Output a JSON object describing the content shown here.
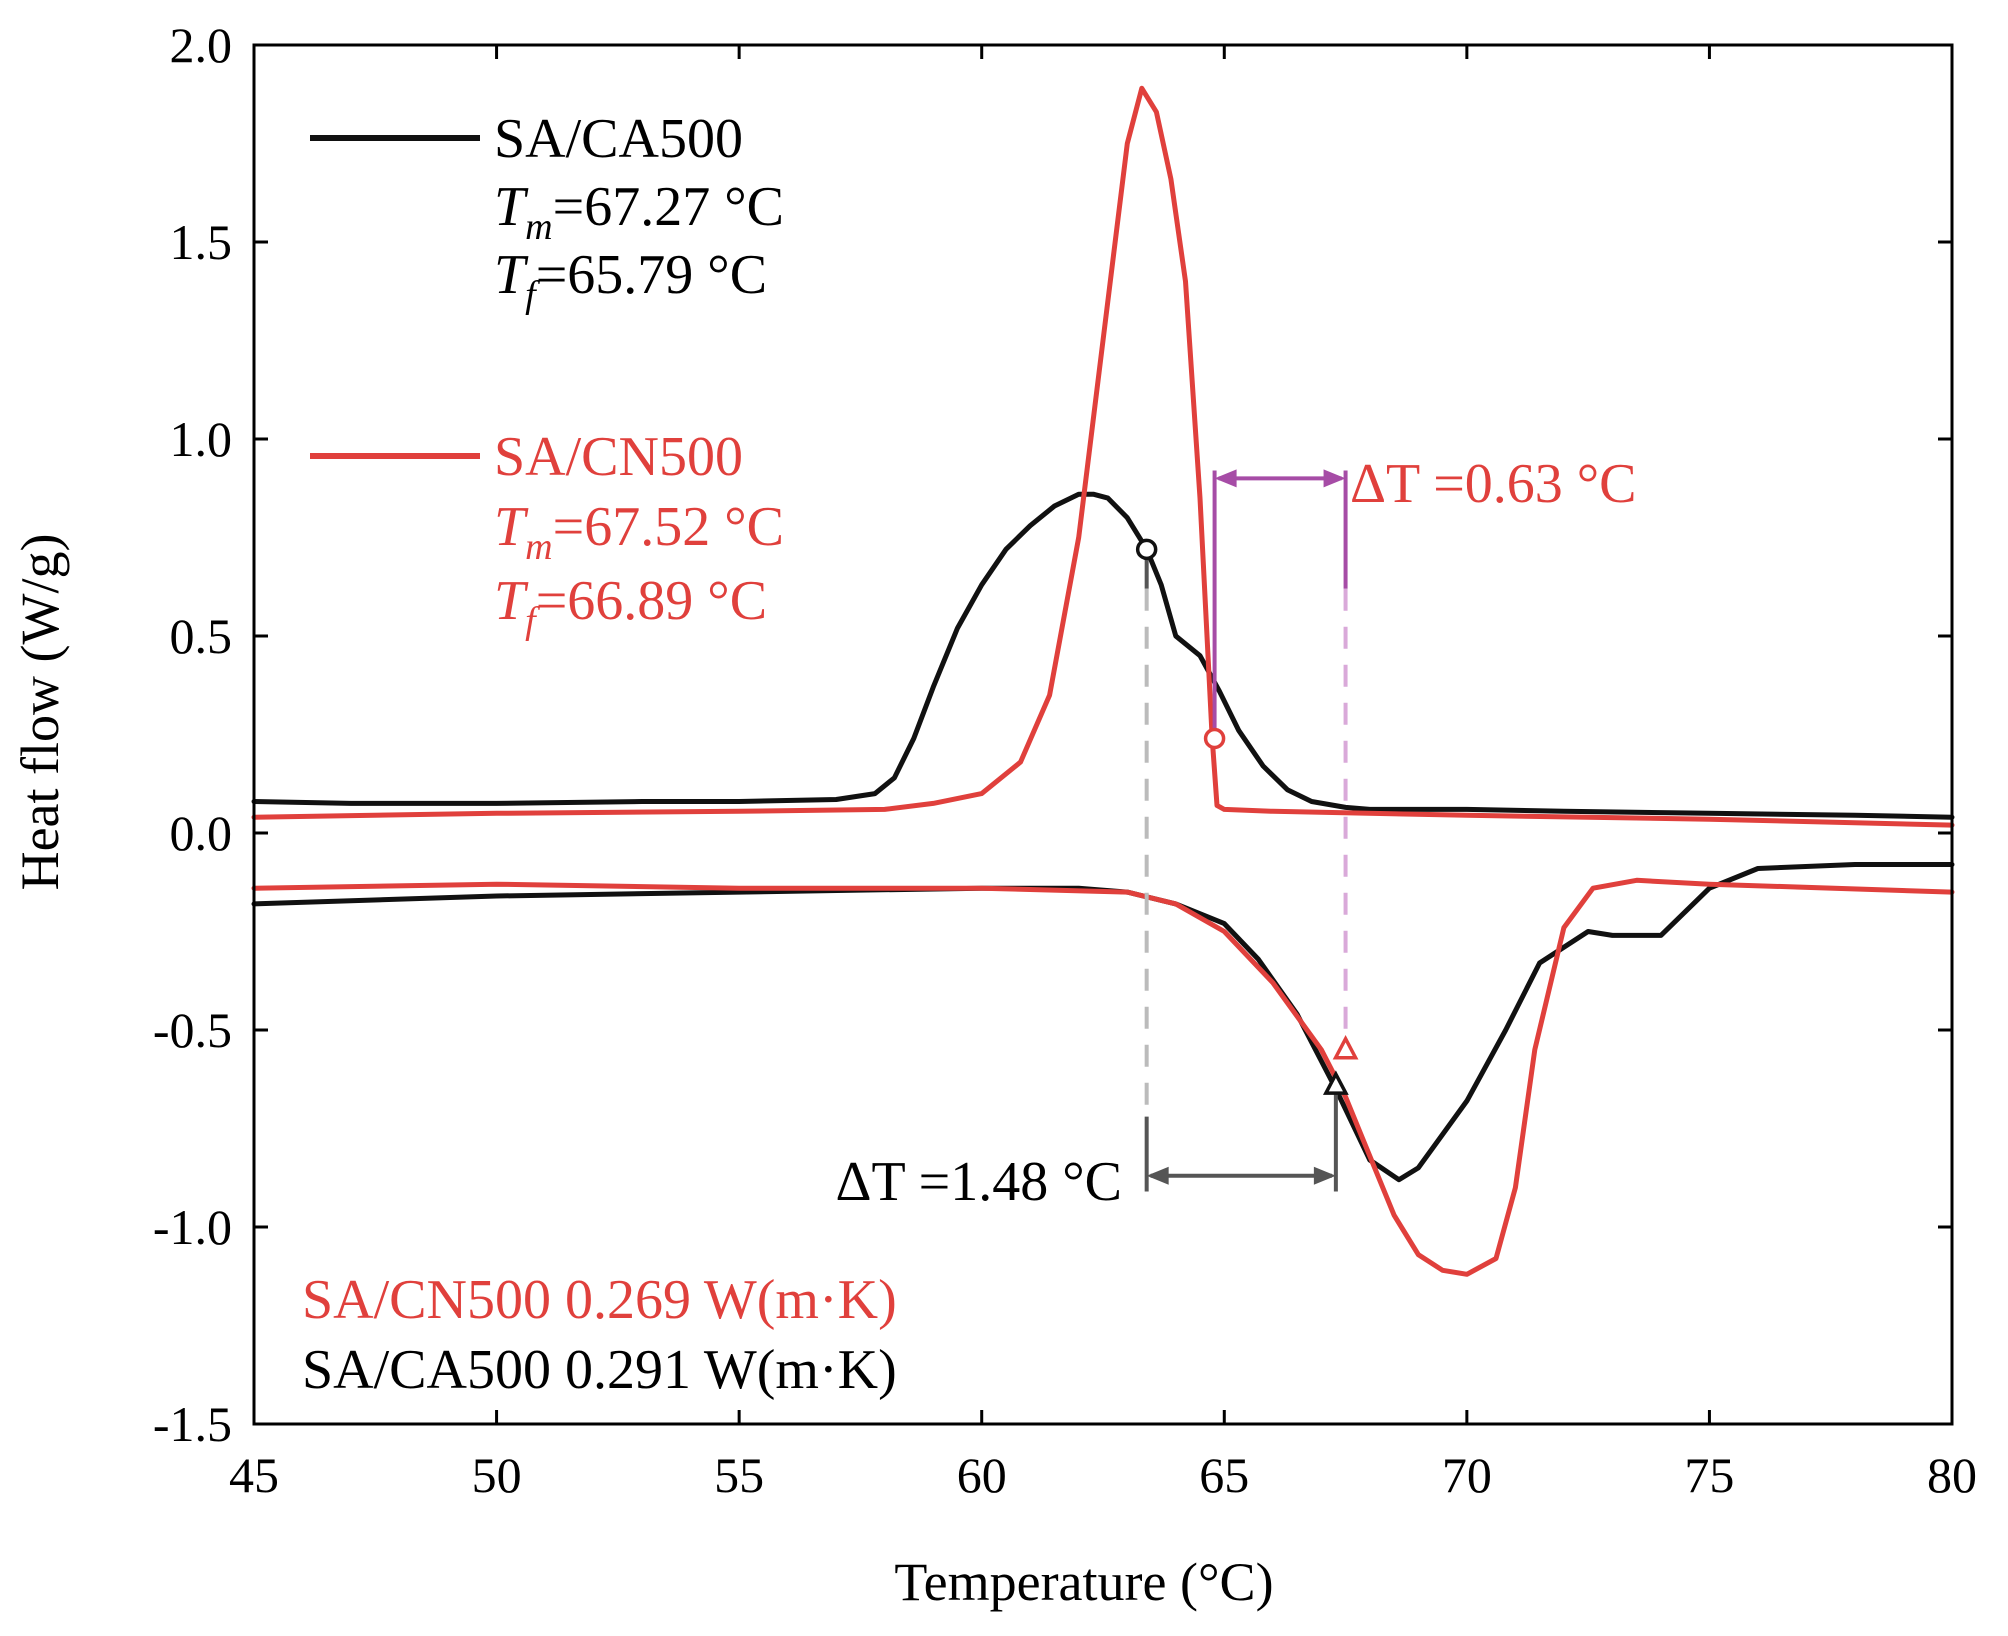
{
  "chart_data": {
    "type": "line",
    "xlabel": "Temperature (°C)",
    "ylabel": "Heat flow (W/g)",
    "xlim": [
      45,
      80
    ],
    "ylim": [
      -1.5,
      2.0
    ],
    "xticks": [
      45,
      50,
      55,
      60,
      65,
      70,
      75,
      80
    ],
    "yticks": [
      -1.5,
      -1.0,
      -0.5,
      0.0,
      0.5,
      1.0,
      1.5,
      2.0
    ],
    "xtick_labels": [
      "45",
      "50",
      "55",
      "60",
      "65",
      "70",
      "75",
      "80"
    ],
    "ytick_labels": [
      "-1.5",
      "-1.0",
      "-0.5",
      "0.0",
      "0.5",
      "1.0",
      "1.5",
      "2.0"
    ],
    "colors": {
      "SA/CA500": "#111111",
      "SA/CN500": "#e0403c",
      "dT_CN": "#a64ca6",
      "dT_CA": "#555555"
    },
    "series": [
      {
        "name": "SA/CA500",
        "segment": "cooling (exotherm, upper)",
        "x": [
          45,
          47,
          50,
          53,
          55,
          57,
          57.8,
          58.2,
          58.6,
          59,
          59.5,
          60,
          60.5,
          61,
          61.5,
          62,
          62.3,
          62.6,
          63,
          63.4,
          63.7,
          64,
          64.5,
          64.9,
          65.3,
          65.8,
          66.3,
          66.8,
          67.5,
          68,
          70,
          72,
          75,
          78,
          80
        ],
        "y": [
          0.08,
          0.075,
          0.075,
          0.08,
          0.08,
          0.085,
          0.1,
          0.14,
          0.24,
          0.37,
          0.52,
          0.63,
          0.72,
          0.78,
          0.83,
          0.86,
          0.86,
          0.85,
          0.8,
          0.72,
          0.63,
          0.5,
          0.45,
          0.36,
          0.26,
          0.17,
          0.11,
          0.08,
          0.065,
          0.06,
          0.06,
          0.055,
          0.05,
          0.045,
          0.04
        ]
      },
      {
        "name": "SA/CN500",
        "segment": "cooling (exotherm, upper)",
        "x": [
          45,
          50,
          55,
          58,
          59,
          60,
          60.8,
          61.4,
          62,
          62.5,
          63,
          63.3,
          63.6,
          63.9,
          64.2,
          64.5,
          64.75,
          64.85,
          65,
          66,
          70,
          75,
          80
        ],
        "y": [
          0.04,
          0.05,
          0.055,
          0.06,
          0.075,
          0.1,
          0.18,
          0.35,
          0.75,
          1.25,
          1.75,
          1.89,
          1.83,
          1.66,
          1.4,
          0.85,
          0.24,
          0.07,
          0.06,
          0.055,
          0.045,
          0.035,
          0.02
        ]
      },
      {
        "name": "SA/CA500",
        "segment": "heating (endotherm, lower)",
        "x": [
          45,
          50,
          55,
          60,
          62,
          63,
          64,
          65,
          65.7,
          66.5,
          67.3,
          68,
          68.6,
          69,
          70,
          70.8,
          71.5,
          72.5,
          73,
          74,
          75,
          76,
          78,
          80
        ],
        "y": [
          -0.18,
          -0.16,
          -0.15,
          -0.14,
          -0.14,
          -0.15,
          -0.18,
          -0.23,
          -0.32,
          -0.46,
          -0.65,
          -0.83,
          -0.88,
          -0.85,
          -0.68,
          -0.5,
          -0.33,
          -0.25,
          -0.26,
          -0.26,
          -0.14,
          -0.09,
          -0.08,
          -0.08
        ]
      },
      {
        "name": "SA/CN500",
        "segment": "heating (endotherm, lower)",
        "x": [
          45,
          50,
          55,
          60,
          63,
          64,
          65,
          66,
          67,
          67.5,
          68,
          68.5,
          69,
          69.5,
          70,
          70.6,
          71,
          71.4,
          72,
          72.6,
          73.5,
          75,
          80
        ],
        "y": [
          -0.14,
          -0.13,
          -0.14,
          -0.14,
          -0.15,
          -0.18,
          -0.25,
          -0.38,
          -0.55,
          -0.67,
          -0.82,
          -0.97,
          -1.07,
          -1.11,
          -1.12,
          -1.08,
          -0.9,
          -0.55,
          -0.24,
          -0.14,
          -0.12,
          -0.13,
          -0.15
        ]
      }
    ],
    "markers": [
      {
        "series": "SA/CA500",
        "shape": "circle",
        "x": 63.4,
        "y": 0.72
      },
      {
        "series": "SA/CN500",
        "shape": "circle",
        "x": 64.8,
        "y": 0.24
      },
      {
        "series": "SA/CN500",
        "shape": "triangle",
        "x": 67.5,
        "y": -0.55
      },
      {
        "series": "SA/CA500",
        "shape": "triangle",
        "x": 67.3,
        "y": -0.64
      }
    ],
    "delta_annotations": [
      {
        "id": "cn",
        "x_from": 64.8,
        "x_to": 67.5,
        "arrow_y": 0.9,
        "label": "ΔT =0.63 °C"
      },
      {
        "id": "ca",
        "x_from": 63.4,
        "x_to": 67.3,
        "arrow_y": -0.87,
        "label": "ΔT =1.48 °C"
      }
    ],
    "legend": {
      "placement": "top-left",
      "entries": [
        {
          "series": "SA/CA500",
          "label": "SA/CA500",
          "tm_var": "T",
          "tm_sub": "m",
          "tm_value": "=67.27 °C",
          "tf_var": "T",
          "tf_sub": "f",
          "tf_value": "=65.79 °C"
        },
        {
          "series": "SA/CN500",
          "label": "SA/CN500",
          "tm_var": "T",
          "tm_sub": "m",
          "tm_value": "=67.52 °C",
          "tf_var": "T",
          "tf_sub": "f",
          "tf_value": "=66.89 °C"
        }
      ]
    },
    "conductivity_notes": [
      {
        "series": "SA/CN500",
        "text": "SA/CN500 0.269 W(m·K)"
      },
      {
        "series": "SA/CA500",
        "text": "SA/CA500 0.291 W(m·K)"
      }
    ]
  }
}
